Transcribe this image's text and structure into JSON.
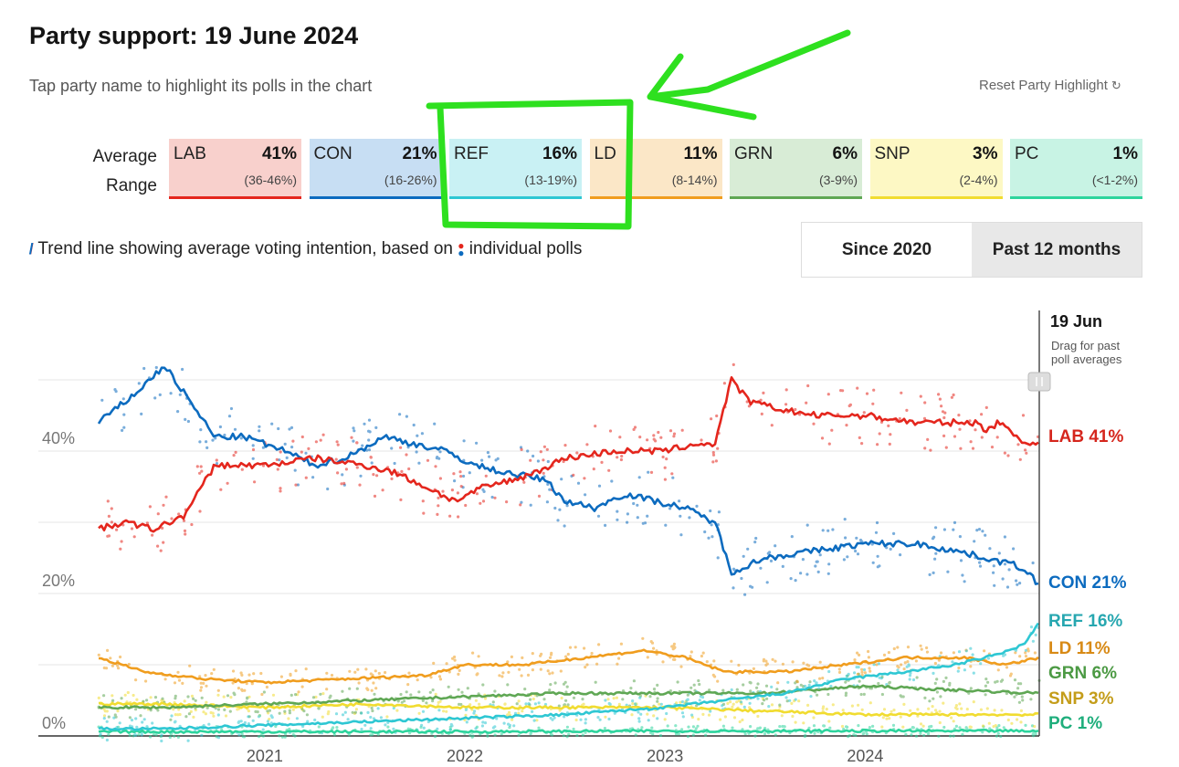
{
  "header": {
    "title": "Party support: 19 June 2024",
    "subtitle": "Tap party name to highlight its polls in the chart",
    "reset_label": "Reset Party Highlight",
    "reset_icon": "refresh-icon"
  },
  "summary": {
    "average_label": "Average",
    "range_label": "Range"
  },
  "cards": [
    {
      "name": "LAB",
      "pct": "41%",
      "range": "(36-46%)",
      "bg": "#f8d0cc",
      "color": "#e4261d"
    },
    {
      "name": "CON",
      "pct": "21%",
      "range": "(16-26%)",
      "bg": "#c7def3",
      "color": "#0c6bbf"
    },
    {
      "name": "REF",
      "pct": "16%",
      "range": "(13-19%)",
      "bg": "#c9f1f4",
      "color": "#2ec7d3"
    },
    {
      "name": "LD",
      "pct": "11%",
      "range": "(8-14%)",
      "bg": "#fbe7c7",
      "color": "#f09d1e"
    },
    {
      "name": "GRN",
      "pct": "6%",
      "range": "(3-9%)",
      "bg": "#d8ecd6",
      "color": "#5fa754"
    },
    {
      "name": "SNP",
      "pct": "3%",
      "range": "(2-4%)",
      "bg": "#fdf8c4",
      "color": "#f1dc30"
    },
    {
      "name": "PC",
      "pct": "1%",
      "range": "(<1-2%)",
      "bg": "#c8f3e4",
      "color": "#2ed49d"
    }
  ],
  "legend": {
    "text_before": "Trend line showing average voting intention, based on",
    "text_after": "individual polls",
    "trend_icon": "trend-line-icon",
    "dots_icon": "poll-dots-icon"
  },
  "toggle": {
    "options": [
      "Since 2020",
      "Past 12 months"
    ],
    "selected": "Past 12 months"
  },
  "chart_data": {
    "type": "line",
    "x_range": [
      "2020-03",
      "2024-06"
    ],
    "x_ticks": [
      "2021",
      "2022",
      "2023",
      "2024"
    ],
    "y_ticks": [
      "0%",
      "20%",
      "40%"
    ],
    "ylim": [
      0,
      60
    ],
    "grid": true,
    "cursor": {
      "date_label": "19 Jun",
      "hint": [
        "Drag for past",
        "poll averages"
      ],
      "handle_icon": "drag-handle-icon"
    },
    "series": [
      {
        "name": "LAB",
        "label": "LAB 41%",
        "color": "#e4261d",
        "label_color": "#d5261d",
        "values": [
          [
            2020.17,
            29
          ],
          [
            2020.3,
            30
          ],
          [
            2020.45,
            29
          ],
          [
            2020.6,
            31
          ],
          [
            2020.75,
            38
          ],
          [
            2021.0,
            38
          ],
          [
            2021.25,
            39
          ],
          [
            2021.5,
            38
          ],
          [
            2021.65,
            37
          ],
          [
            2021.8,
            35
          ],
          [
            2021.95,
            33
          ],
          [
            2022.1,
            35
          ],
          [
            2022.25,
            36
          ],
          [
            2022.35,
            37
          ],
          [
            2022.5,
            39
          ],
          [
            2022.75,
            40
          ],
          [
            2023.0,
            40
          ],
          [
            2023.15,
            41
          ],
          [
            2023.25,
            41
          ],
          [
            2023.33,
            50
          ],
          [
            2023.42,
            47
          ],
          [
            2023.55,
            46
          ],
          [
            2023.75,
            45
          ],
          [
            2024.0,
            45
          ],
          [
            2024.25,
            44
          ],
          [
            2024.45,
            44
          ],
          [
            2024.55,
            44
          ],
          [
            2024.6,
            43
          ],
          [
            2024.67,
            44
          ],
          [
            2024.72,
            43
          ],
          [
            2024.76,
            42
          ],
          [
            2024.82,
            41
          ],
          [
            2024.87,
            41
          ]
        ]
      },
      {
        "name": "CON",
        "label": "CON 21%",
        "color": "#0c6bbf",
        "label_color": "#0c6bbf",
        "values": [
          [
            2020.17,
            44
          ],
          [
            2020.35,
            48
          ],
          [
            2020.5,
            52
          ],
          [
            2020.6,
            48
          ],
          [
            2020.75,
            42
          ],
          [
            2020.9,
            42
          ],
          [
            2021.1,
            40
          ],
          [
            2021.25,
            38
          ],
          [
            2021.4,
            39
          ],
          [
            2021.6,
            42
          ],
          [
            2021.75,
            41
          ],
          [
            2021.9,
            40
          ],
          [
            2022.05,
            38
          ],
          [
            2022.2,
            37
          ],
          [
            2022.4,
            36
          ],
          [
            2022.5,
            33
          ],
          [
            2022.65,
            32
          ],
          [
            2022.8,
            34
          ],
          [
            2022.95,
            33
          ],
          [
            2023.1,
            32
          ],
          [
            2023.25,
            30
          ],
          [
            2023.33,
            23
          ],
          [
            2023.5,
            25
          ],
          [
            2023.75,
            26
          ],
          [
            2024.0,
            27
          ],
          [
            2024.25,
            27
          ],
          [
            2024.45,
            26
          ],
          [
            2024.6,
            25
          ],
          [
            2024.75,
            24
          ],
          [
            2024.82,
            23
          ],
          [
            2024.87,
            21
          ]
        ]
      },
      {
        "name": "REF",
        "label": "REF 16%",
        "color": "#2ec7d3",
        "label_color": "#27a7b0",
        "values": [
          [
            2020.17,
            1
          ],
          [
            2020.5,
            1
          ],
          [
            2021.0,
            1.5
          ],
          [
            2021.5,
            2
          ],
          [
            2022.0,
            2.5
          ],
          [
            2022.5,
            3
          ],
          [
            2023.0,
            4
          ],
          [
            2023.3,
            5
          ],
          [
            2023.6,
            6
          ],
          [
            2023.9,
            8
          ],
          [
            2024.2,
            9
          ],
          [
            2024.45,
            10
          ],
          [
            2024.6,
            11
          ],
          [
            2024.72,
            12
          ],
          [
            2024.8,
            13
          ],
          [
            2024.87,
            16
          ]
        ]
      },
      {
        "name": "LD",
        "label": "LD 11%",
        "color": "#f09d1e",
        "label_color": "#d88a16",
        "values": [
          [
            2020.17,
            11
          ],
          [
            2020.4,
            9
          ],
          [
            2020.7,
            8
          ],
          [
            2021.0,
            7.5
          ],
          [
            2021.4,
            8
          ],
          [
            2021.8,
            8.5
          ],
          [
            2022.0,
            10
          ],
          [
            2022.3,
            10
          ],
          [
            2022.6,
            11
          ],
          [
            2022.9,
            12
          ],
          [
            2023.1,
            11
          ],
          [
            2023.3,
            9
          ],
          [
            2023.6,
            9
          ],
          [
            2023.9,
            10
          ],
          [
            2024.2,
            11
          ],
          [
            2024.5,
            11
          ],
          [
            2024.7,
            10
          ],
          [
            2024.87,
            11
          ]
        ]
      },
      {
        "name": "GRN",
        "label": "GRN 6%",
        "color": "#5fa754",
        "label_color": "#4c9a44",
        "values": [
          [
            2020.17,
            4
          ],
          [
            2020.5,
            4
          ],
          [
            2021.0,
            4.5
          ],
          [
            2021.5,
            5
          ],
          [
            2022.0,
            5.5
          ],
          [
            2022.5,
            6
          ],
          [
            2023.0,
            6
          ],
          [
            2023.5,
            6
          ],
          [
            2024.0,
            7
          ],
          [
            2024.4,
            6.5
          ],
          [
            2024.87,
            6
          ]
        ]
      },
      {
        "name": "SNP",
        "label": "SNP 3%",
        "color": "#f1dc30",
        "label_color": "#c49d1a",
        "values": [
          [
            2020.17,
            4.5
          ],
          [
            2020.5,
            4.5
          ],
          [
            2021.0,
            4
          ],
          [
            2021.5,
            4.5
          ],
          [
            2022.0,
            4
          ],
          [
            2022.5,
            4
          ],
          [
            2023.0,
            4
          ],
          [
            2023.5,
            3.5
          ],
          [
            2024.0,
            3
          ],
          [
            2024.4,
            3
          ],
          [
            2024.87,
            3
          ]
        ]
      },
      {
        "name": "PC",
        "label": "PC 1%",
        "color": "#2ed49d",
        "label_color": "#1fae7c",
        "values": [
          [
            2020.17,
            0.6
          ],
          [
            2021.0,
            0.6
          ],
          [
            2022.0,
            0.6
          ],
          [
            2023.0,
            0.7
          ],
          [
            2024.0,
            0.7
          ],
          [
            2024.87,
            0.7
          ]
        ]
      }
    ]
  }
}
